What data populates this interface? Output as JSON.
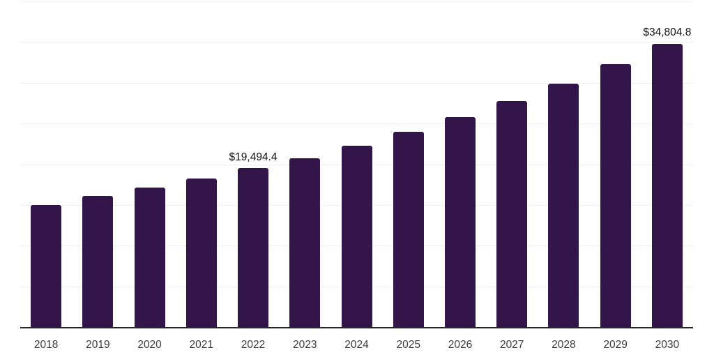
{
  "chart_data": {
    "type": "bar",
    "title": "",
    "xlabel": "",
    "ylabel": "",
    "categories": [
      "2018",
      "2019",
      "2020",
      "2021",
      "2022",
      "2023",
      "2024",
      "2025",
      "2026",
      "2027",
      "2028",
      "2029",
      "2030"
    ],
    "values": [
      15000,
      16130,
      17110,
      18250,
      19494.4,
      20770,
      22310,
      23970,
      25820,
      27740,
      29910,
      32310,
      34804.8
    ],
    "value_labels": [
      null,
      null,
      null,
      null,
      "$19,494.4",
      null,
      null,
      null,
      null,
      null,
      null,
      null,
      "$34,804.8"
    ],
    "ylim": [
      0,
      40000
    ],
    "gridline_step": 5000,
    "grid": true,
    "legend": false,
    "colors": {
      "bar": "#33154a",
      "gridline": "#f0f0f0",
      "axis_line": "#262626",
      "tick_label": "#3c3c3c",
      "value_label": "#111111",
      "background": "#ffffff"
    }
  }
}
